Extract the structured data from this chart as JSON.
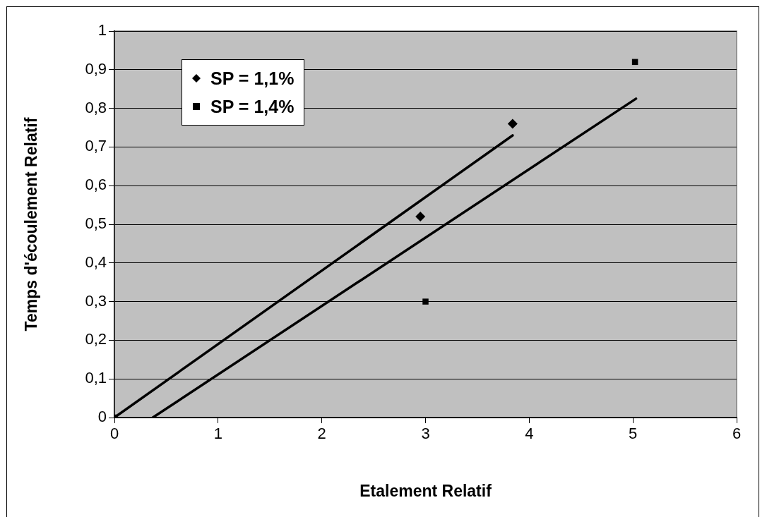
{
  "chart_data": {
    "type": "scatter",
    "xlabel": "Etalement Relatif",
    "ylabel": "Temps d'écoulement Relatif",
    "xlim": [
      0,
      6
    ],
    "xticks": [
      0,
      1,
      2,
      3,
      4,
      5,
      6
    ],
    "ylim": [
      0,
      1
    ],
    "yticks": [
      0,
      {
        "value": 0.1,
        "label": "0,1"
      },
      {
        "value": 0.2,
        "label": "0,2"
      },
      {
        "value": 0.3,
        "label": "0,3"
      },
      {
        "value": 0.4,
        "label": "0,4"
      },
      {
        "value": 0.5,
        "label": "0,5"
      },
      {
        "value": 0.6,
        "label": "0,6"
      },
      {
        "value": 0.7,
        "label": "0,7"
      },
      {
        "value": 0.8,
        "label": "0,8"
      },
      {
        "value": 0.9,
        "label": "0,9"
      },
      1
    ],
    "grid": "y",
    "legend": "top left",
    "series": [
      {
        "name": "SP = 1,1%",
        "color": "#000000",
        "marker": "diamond",
        "x": [
          2.95,
          3.84
        ],
        "values": [
          0.52,
          0.76
        ]
      },
      {
        "name": "SP = 1,4%",
        "color": "#000000",
        "marker": "square",
        "x": [
          0,
          3.0,
          5.02
        ],
        "values": [
          0,
          0.3,
          0.92
        ]
      },
      {
        "type": "line",
        "color": "#000000",
        "marker": "none",
        "x": [
          0,
          3.84
        ],
        "values": [
          0,
          0.73
        ]
      },
      {
        "type": "line",
        "color": "#000000",
        "marker": "none",
        "x": [
          0.37,
          5.03
        ],
        "values": [
          0,
          0.825
        ]
      }
    ]
  }
}
